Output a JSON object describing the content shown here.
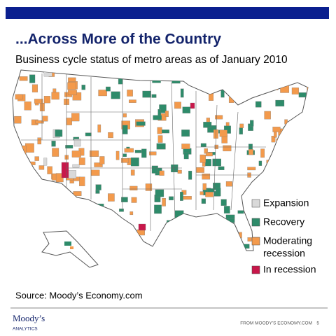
{
  "header": {
    "title": "...Across More of the Country",
    "subtitle": "Business cycle status of metro areas as of January 2010"
  },
  "legend": [
    {
      "label": "Expansion",
      "color": "#d9d9d9"
    },
    {
      "label": "Recovery",
      "color": "#2e8b6a"
    },
    {
      "label": [
        "Moderating",
        "recession"
      ],
      "color": "#f39a4c"
    },
    {
      "label": "In recession",
      "color": "#c8174a"
    }
  ],
  "source": "Source: Moody’s Economy.com",
  "footer": {
    "logo": "Moody’s",
    "logo_sub": "ANALYTICS",
    "credit": "FROM MOODY’S ECONOMY.COM",
    "page": "5"
  }
}
